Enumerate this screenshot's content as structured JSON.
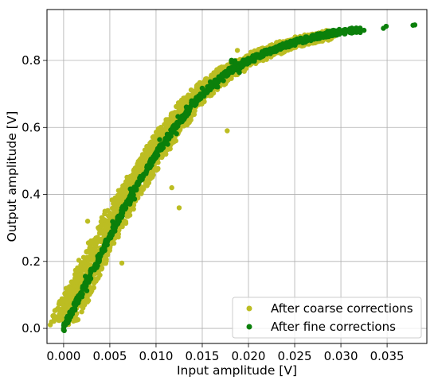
{
  "chart_data": {
    "type": "scatter",
    "title": "",
    "xlabel": "Input amplitude [V]",
    "ylabel": "Output amplitude [V]",
    "xlim": [
      -0.0018,
      0.0393
    ],
    "ylim": [
      -0.045,
      0.952
    ],
    "xticks": [
      0.0,
      0.005,
      0.01,
      0.015,
      0.02,
      0.025,
      0.03,
      0.035
    ],
    "xtick_labels": [
      "0.000",
      "0.005",
      "0.010",
      "0.015",
      "0.020",
      "0.025",
      "0.030",
      "0.035"
    ],
    "yticks": [
      0.0,
      0.2,
      0.4,
      0.6,
      0.8
    ],
    "ytick_labels": [
      "0.0",
      "0.2",
      "0.4",
      "0.6",
      "0.8"
    ],
    "grid": true,
    "legend_position": "lower-right",
    "series": [
      {
        "name": "After coarse corrections",
        "color": "#bcbd22",
        "band_curve_x": [
          0.0,
          0.002,
          0.004,
          0.006,
          0.008,
          0.01,
          0.012,
          0.014,
          0.016,
          0.018,
          0.02,
          0.022,
          0.024,
          0.026,
          0.028,
          0.029
        ],
        "band_curve_y": [
          0.02,
          0.13,
          0.25,
          0.35,
          0.44,
          0.53,
          0.61,
          0.68,
          0.73,
          0.77,
          0.8,
          0.825,
          0.845,
          0.86,
          0.872,
          0.878
        ],
        "band_half_width_x": 0.0015,
        "outliers": [
          {
            "x": 0.0177,
            "y": 0.59
          },
          {
            "x": 0.0125,
            "y": 0.36
          },
          {
            "x": 0.0117,
            "y": 0.42
          },
          {
            "x": 0.0063,
            "y": 0.195
          },
          {
            "x": 0.0026,
            "y": 0.32
          },
          {
            "x": 0.0188,
            "y": 0.83
          },
          {
            "x": 0.0173,
            "y": 0.78
          }
        ]
      },
      {
        "name": "After fine corrections",
        "color": "#0b800b",
        "curve_x": [
          0.0,
          0.002,
          0.004,
          0.006,
          0.008,
          0.01,
          0.012,
          0.014,
          0.016,
          0.018,
          0.02,
          0.022,
          0.024,
          0.026,
          0.028,
          0.03,
          0.032
        ],
        "curve_y": [
          0.0,
          0.11,
          0.22,
          0.33,
          0.43,
          0.52,
          0.6,
          0.67,
          0.725,
          0.77,
          0.8,
          0.825,
          0.845,
          0.862,
          0.876,
          0.886,
          0.891
        ],
        "extra_points": [
          {
            "x": 0.0,
            "y": 0.0
          },
          {
            "x": 0.0346,
            "y": 0.896
          },
          {
            "x": 0.0349,
            "y": 0.902
          },
          {
            "x": 0.0378,
            "y": 0.905
          },
          {
            "x": 0.038,
            "y": 0.906
          },
          {
            "x": 0.0325,
            "y": 0.89
          }
        ]
      }
    ]
  }
}
